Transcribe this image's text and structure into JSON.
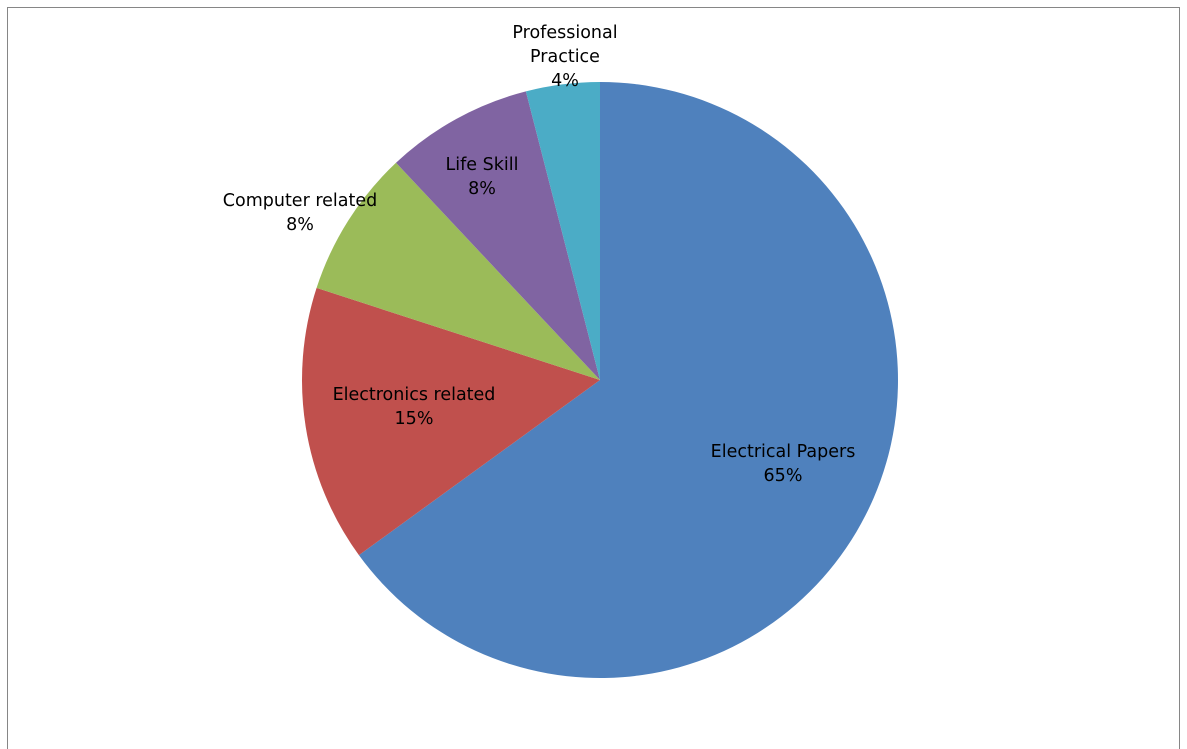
{
  "chart_data": {
    "type": "pie",
    "title": "",
    "slices": [
      {
        "label": "Electrical Papers",
        "value": 65,
        "percent_label": "65%",
        "color": "#4F81BD"
      },
      {
        "label": "Electronics related",
        "value": 15,
        "percent_label": "15%",
        "color": "#C0504D"
      },
      {
        "label": "Computer related",
        "value": 8,
        "percent_label": "8%",
        "color": "#9BBB59"
      },
      {
        "label": "Life Skill",
        "value": 8,
        "percent_label": "8%",
        "color": "#8064A2"
      },
      {
        "label": "Professional Practice",
        "value": 4,
        "percent_label": "4%",
        "color": "#4BACC6"
      }
    ],
    "start": "12 o'clock",
    "direction": "clockwise",
    "legend": "none",
    "data_labels": "category name and percentage"
  }
}
